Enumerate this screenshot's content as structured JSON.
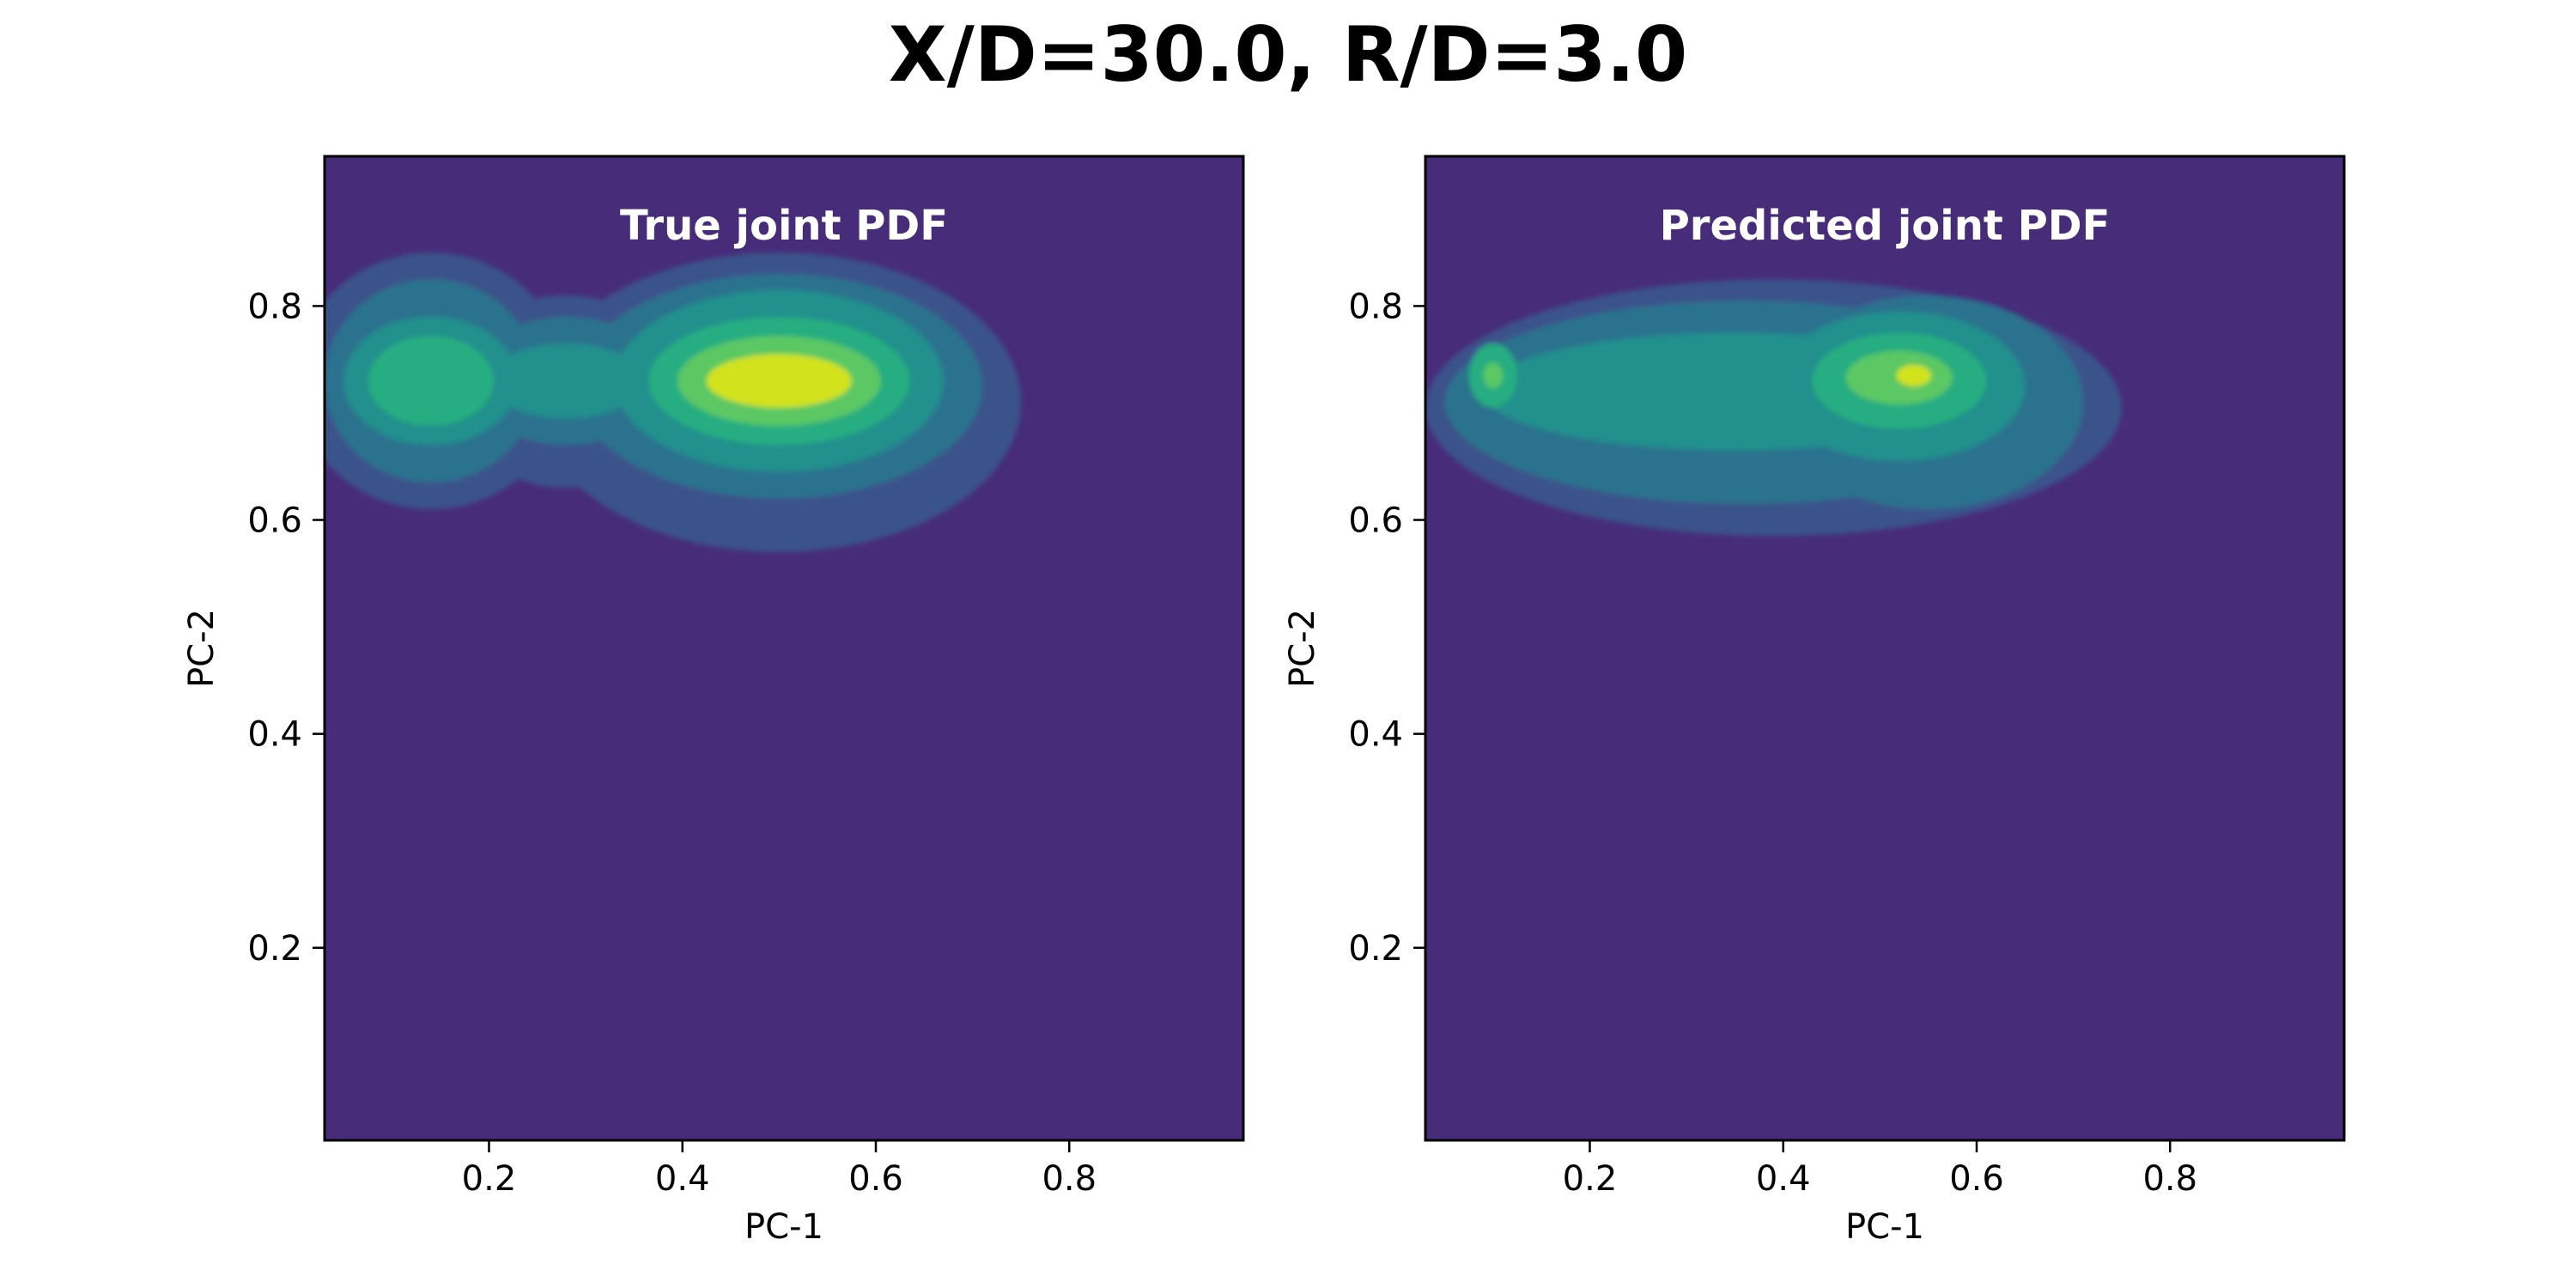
{
  "figure": {
    "title": "X/D=30.0, R/D=3.0"
  },
  "chart_data": [
    {
      "type": "heatmap",
      "title": "True joint PDF",
      "xlabel": "PC-1",
      "ylabel": "PC-2",
      "xlim": [
        0.03,
        0.98
      ],
      "ylim": [
        0.02,
        0.94
      ],
      "xticks": [
        0.2,
        0.4,
        0.6,
        0.8
      ],
      "yticks": [
        0.2,
        0.4,
        0.6,
        0.8
      ],
      "colormap": "viridis",
      "background_color": "#472c7a",
      "levels": [
        {
          "level": 1,
          "color": "#3b528b",
          "regions": [
            {
              "shape": "ellipse",
              "cx": 0.14,
              "cy": 0.73,
              "rx": 0.14,
              "ry": 0.12
            },
            {
              "shape": "ellipse",
              "cx": 0.5,
              "cy": 0.71,
              "rx": 0.25,
              "ry": 0.14
            },
            {
              "shape": "ellipse",
              "cx": 0.28,
              "cy": 0.72,
              "rx": 0.12,
              "ry": 0.09
            }
          ]
        },
        {
          "level": 2,
          "color": "#2c728e",
          "regions": [
            {
              "shape": "ellipse",
              "cx": 0.14,
              "cy": 0.73,
              "rx": 0.11,
              "ry": 0.095
            },
            {
              "shape": "ellipse",
              "cx": 0.5,
              "cy": 0.725,
              "rx": 0.21,
              "ry": 0.105
            },
            {
              "shape": "ellipse",
              "cx": 0.28,
              "cy": 0.73,
              "rx": 0.1,
              "ry": 0.06
            }
          ]
        },
        {
          "level": 3,
          "color": "#21908d",
          "regions": [
            {
              "shape": "ellipse",
              "cx": 0.14,
              "cy": 0.73,
              "rx": 0.09,
              "ry": 0.06
            },
            {
              "shape": "ellipse",
              "cx": 0.5,
              "cy": 0.73,
              "rx": 0.17,
              "ry": 0.085
            },
            {
              "shape": "ellipse",
              "cx": 0.28,
              "cy": 0.73,
              "rx": 0.08,
              "ry": 0.035
            }
          ]
        },
        {
          "level": 4,
          "color": "#27ad81",
          "regions": [
            {
              "shape": "ellipse",
              "cx": 0.14,
              "cy": 0.73,
              "rx": 0.065,
              "ry": 0.042
            },
            {
              "shape": "ellipse",
              "cx": 0.5,
              "cy": 0.73,
              "rx": 0.135,
              "ry": 0.06
            }
          ]
        },
        {
          "level": 5,
          "color": "#5cc863",
          "regions": [
            {
              "shape": "ellipse",
              "cx": 0.5,
              "cy": 0.73,
              "rx": 0.105,
              "ry": 0.042
            }
          ]
        },
        {
          "level": 6,
          "color": "#d2e21b",
          "regions": [
            {
              "shape": "ellipse",
              "cx": 0.5,
              "cy": 0.73,
              "rx": 0.075,
              "ry": 0.025
            }
          ]
        }
      ]
    },
    {
      "type": "heatmap",
      "title": "Predicted joint PDF",
      "xlabel": "PC-1",
      "ylabel": "PC-2",
      "xlim": [
        0.03,
        0.98
      ],
      "ylim": [
        0.02,
        0.94
      ],
      "xticks": [
        0.2,
        0.4,
        0.6,
        0.8
      ],
      "yticks": [
        0.2,
        0.4,
        0.6,
        0.8
      ],
      "colormap": "viridis",
      "background_color": "#472c7a",
      "levels": [
        {
          "level": 1,
          "color": "#3b528b",
          "regions": [
            {
              "shape": "ellipse",
              "cx": 0.39,
              "cy": 0.705,
              "rx": 0.36,
              "ry": 0.12
            }
          ]
        },
        {
          "level": 2,
          "color": "#2c728e",
          "regions": [
            {
              "shape": "ellipse",
              "cx": 0.36,
              "cy": 0.71,
              "rx": 0.31,
              "ry": 0.095
            },
            {
              "shape": "ellipse",
              "cx": 0.55,
              "cy": 0.71,
              "rx": 0.16,
              "ry": 0.1
            }
          ]
        },
        {
          "level": 3,
          "color": "#21908d",
          "regions": [
            {
              "shape": "ellipse",
              "cx": 0.35,
              "cy": 0.72,
              "rx": 0.26,
              "ry": 0.055
            },
            {
              "shape": "ellipse",
              "cx": 0.52,
              "cy": 0.725,
              "rx": 0.13,
              "ry": 0.07
            }
          ]
        },
        {
          "level": 4,
          "color": "#27ad81",
          "regions": [
            {
              "shape": "ellipse",
              "cx": 0.52,
              "cy": 0.73,
              "rx": 0.09,
              "ry": 0.045
            },
            {
              "shape": "ellipse",
              "cx": 0.1,
              "cy": 0.735,
              "rx": 0.025,
              "ry": 0.03
            }
          ]
        },
        {
          "level": 5,
          "color": "#5cc863",
          "regions": [
            {
              "shape": "ellipse",
              "cx": 0.52,
              "cy": 0.733,
              "rx": 0.055,
              "ry": 0.025
            },
            {
              "shape": "ellipse",
              "cx": 0.1,
              "cy": 0.735,
              "rx": 0.01,
              "ry": 0.012
            }
          ]
        },
        {
          "level": 6,
          "color": "#d2e21b",
          "regions": [
            {
              "shape": "ellipse",
              "cx": 0.535,
              "cy": 0.735,
              "rx": 0.018,
              "ry": 0.01
            }
          ]
        }
      ]
    }
  ]
}
